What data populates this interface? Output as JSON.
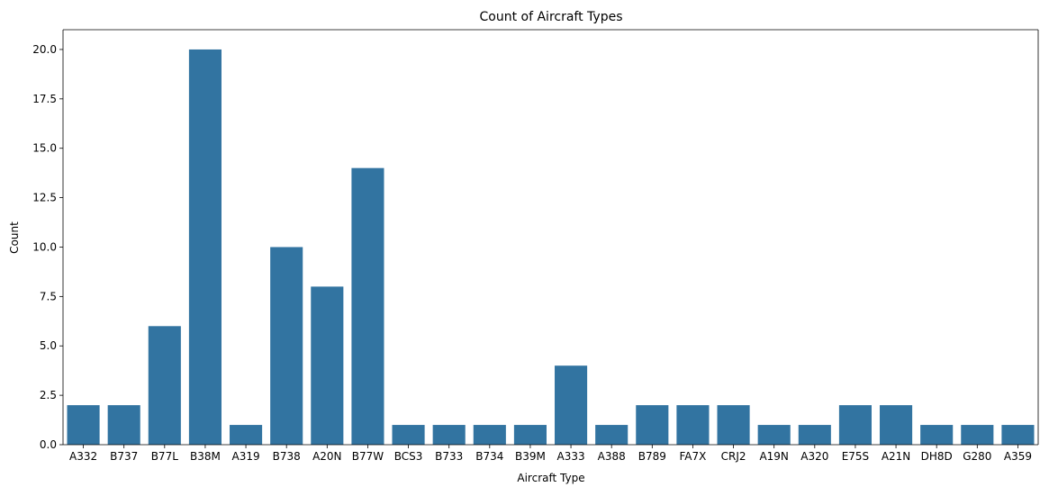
{
  "chart_data": {
    "type": "bar",
    "title": "Count of Aircraft Types",
    "xlabel": "Aircraft Type",
    "ylabel": "Count",
    "categories": [
      "A332",
      "B737",
      "B77L",
      "B38M",
      "A319",
      "B738",
      "A20N",
      "B77W",
      "BCS3",
      "B733",
      "B734",
      "B39M",
      "A333",
      "A388",
      "B789",
      "FA7X",
      "CRJ2",
      "A19N",
      "A320",
      "E75S",
      "A21N",
      "DH8D",
      "G280",
      "A359"
    ],
    "values": [
      2,
      2,
      6,
      20,
      1,
      10,
      8,
      14,
      1,
      1,
      1,
      1,
      4,
      1,
      2,
      2,
      2,
      1,
      1,
      2,
      2,
      1,
      1,
      1
    ],
    "ylim": [
      0,
      21
    ],
    "yticks": [
      "0.0",
      "2.5",
      "5.0",
      "7.5",
      "10.0",
      "12.5",
      "15.0",
      "17.5",
      "20.0"
    ],
    "bar_color": "#3274a1",
    "grid": false,
    "legend": "none"
  }
}
